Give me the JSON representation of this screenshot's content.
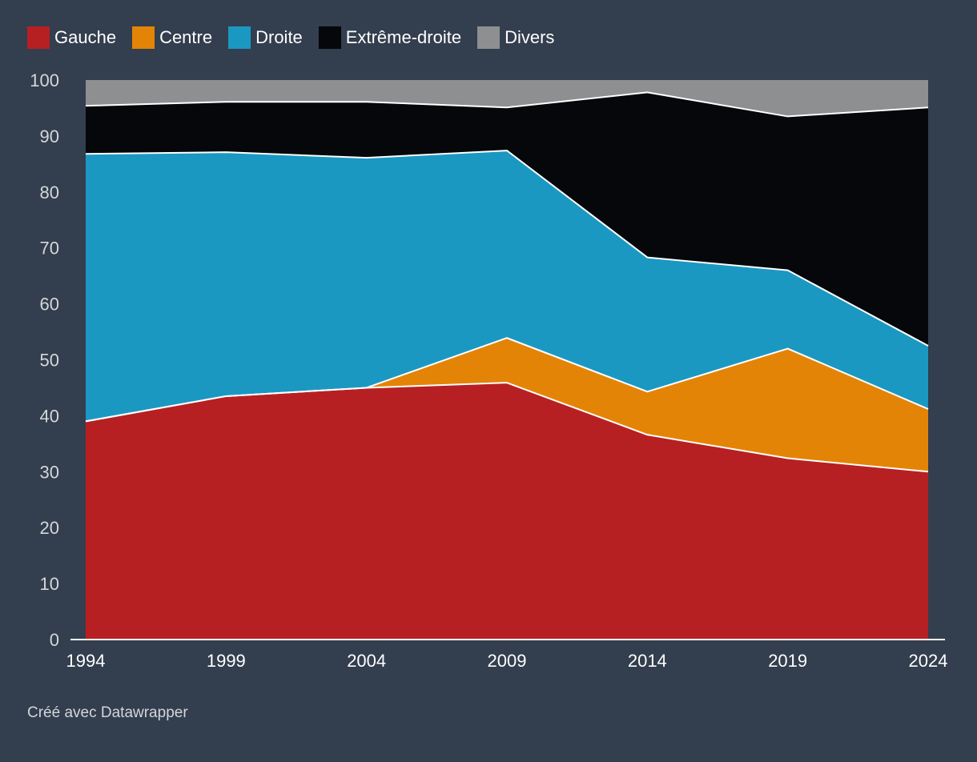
{
  "chart_data": {
    "type": "area",
    "stacked": true,
    "x": [
      1994,
      1999,
      2004,
      2009,
      2014,
      2019,
      2024
    ],
    "series": [
      {
        "name": "Gauche",
        "color": "#b72022",
        "values": [
          39.0,
          43.5,
          45.0,
          45.9,
          36.6,
          32.4,
          30.0
        ]
      },
      {
        "name": "Centre",
        "color": "#e48406",
        "values": [
          0.0,
          0.0,
          0.0,
          8.0,
          7.7,
          19.6,
          11.2
        ]
      },
      {
        "name": "Droite",
        "color": "#1b98c2",
        "values": [
          47.8,
          43.6,
          41.1,
          33.5,
          24.0,
          14.0,
          11.3
        ]
      },
      {
        "name": "Extrême-droite",
        "color": "#05070a",
        "values": [
          8.6,
          9.0,
          10.0,
          7.7,
          29.5,
          27.5,
          42.6
        ]
      },
      {
        "name": "Divers",
        "color": "#8e8f91",
        "values": [
          4.6,
          3.9,
          3.9,
          4.9,
          2.2,
          6.5,
          4.9
        ]
      }
    ],
    "ylim": [
      0,
      100
    ],
    "yticks": [
      0,
      10,
      20,
      30,
      40,
      50,
      60,
      70,
      80,
      90,
      100
    ],
    "xticks": [
      1994,
      1999,
      2004,
      2009,
      2014,
      2019,
      2024
    ],
    "legend_position": "top-left",
    "grid": false,
    "title": "",
    "xlabel": "",
    "ylabel": ""
  },
  "footer": {
    "credit": "Créé avec Datawrapper"
  },
  "colors": {
    "background": "#333e4e",
    "axis_text": "#d4d7dc",
    "separator": "#ffffff"
  }
}
